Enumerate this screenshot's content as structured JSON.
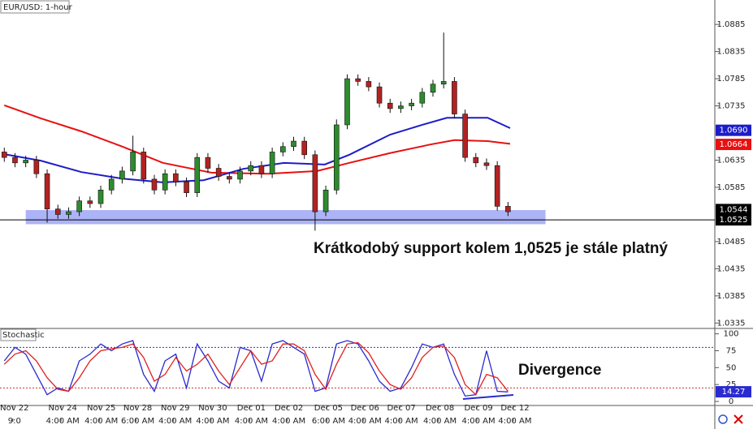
{
  "chart_data": [
    {
      "type": "candlestick",
      "title": "EUR/USD: 1-hour",
      "xlim": [
        -0.4,
        66.3
      ],
      "ylim": [
        1.0325,
        1.093
      ],
      "yticks": [
        1.0885,
        1.0835,
        1.0785,
        1.0735,
        1.0635,
        1.0585,
        1.0485,
        1.0435,
        1.0385,
        1.0335
      ],
      "up_color": "#2e8b2e",
      "down_color": "#b22222",
      "open": [
        1.065,
        1.064,
        1.063,
        1.0635,
        1.061,
        1.0545,
        1.0535,
        1.054,
        1.056,
        1.0555,
        1.058,
        1.06,
        1.0615,
        1.065,
        1.06,
        1.058,
        1.061,
        1.0595,
        1.0575,
        1.064,
        1.062,
        1.0605,
        1.06,
        1.0615,
        1.0625,
        1.061,
        1.065,
        1.066,
        1.067,
        1.0645,
        1.054,
        1.058,
        1.07,
        1.0785,
        1.078,
        1.077,
        1.074,
        1.073,
        1.0735,
        1.074,
        1.076,
        1.0775,
        1.078,
        1.072,
        1.064,
        1.063,
        1.0625,
        1.055
      ],
      "high": [
        1.0658,
        1.0648,
        1.0643,
        1.0643,
        1.0618,
        1.0553,
        1.0548,
        1.0568,
        1.0568,
        1.0588,
        1.0608,
        1.0623,
        1.068,
        1.0658,
        1.0608,
        1.0618,
        1.0618,
        1.0603,
        1.0648,
        1.0648,
        1.0628,
        1.0613,
        1.0623,
        1.0633,
        1.0633,
        1.0658,
        1.0668,
        1.0678,
        1.0678,
        1.0653,
        1.0588,
        1.071,
        1.0793,
        1.0793,
        1.0788,
        1.0778,
        1.0748,
        1.0743,
        1.0748,
        1.0768,
        1.0783,
        1.087,
        1.0788,
        1.0728,
        1.0648,
        1.0638,
        1.0633,
        1.0558
      ],
      "low": [
        1.0632,
        1.0622,
        1.0622,
        1.0602,
        1.052,
        1.0527,
        1.0527,
        1.0532,
        1.0547,
        1.0547,
        1.0572,
        1.0592,
        1.0607,
        1.0592,
        1.0572,
        1.0572,
        1.0587,
        1.0567,
        1.0567,
        1.0612,
        1.0597,
        1.0592,
        1.0592,
        1.0607,
        1.0602,
        1.0602,
        1.0642,
        1.0652,
        1.0637,
        1.0505,
        1.0532,
        1.0572,
        1.0692,
        1.0772,
        1.0762,
        1.0732,
        1.0722,
        1.0722,
        1.0727,
        1.0732,
        1.0752,
        1.0767,
        1.0712,
        1.0632,
        1.0622,
        1.0617,
        1.0542,
        1.0532
      ],
      "close": [
        1.064,
        1.063,
        1.0635,
        1.061,
        1.0545,
        1.0535,
        1.054,
        1.056,
        1.0555,
        1.058,
        1.06,
        1.0615,
        1.065,
        1.06,
        1.058,
        1.061,
        1.0595,
        1.0575,
        1.064,
        1.062,
        1.0605,
        1.06,
        1.0615,
        1.0625,
        1.061,
        1.065,
        1.066,
        1.067,
        1.0645,
        1.054,
        1.058,
        1.07,
        1.0785,
        1.078,
        1.077,
        1.074,
        1.073,
        1.0735,
        1.074,
        1.076,
        1.0775,
        1.078,
        1.072,
        1.064,
        1.063,
        1.0625,
        1.055,
        1.054
      ],
      "last_price": {
        "value": 1.0544,
        "label": "1.0544"
      },
      "series": [
        {
          "color": "#e81010",
          "x": [
            0,
            3.4,
            7.2,
            11,
            14.8,
            19.3,
            24.6,
            29.2,
            32.2,
            36,
            39.8,
            42,
            45.1,
            47.2
          ],
          "values": [
            1.0736,
            1.0712,
            1.0688,
            1.066,
            1.063,
            1.0612,
            1.061,
            1.0615,
            1.063,
            1.0648,
            1.0664,
            1.0672,
            1.067,
            1.0665
          ],
          "last": {
            "value": 1.0664,
            "label": "1.0664"
          }
        },
        {
          "color": "#1c1cc8",
          "x": [
            0,
            3.4,
            7.2,
            11,
            14.8,
            18.6,
            22.3,
            26.1,
            29.9,
            32.2,
            36,
            39,
            41.3,
            45.1,
            47.2
          ],
          "values": [
            1.0646,
            1.0634,
            1.0613,
            1.0601,
            1.0594,
            1.0598,
            1.0619,
            1.063,
            1.0627,
            1.0645,
            1.0682,
            1.07,
            1.0713,
            1.0713,
            1.0694
          ],
          "last": {
            "value": 1.069,
            "label": "1.0690"
          }
        }
      ],
      "support_zone": [
        1.0517,
        1.0543
      ],
      "support_level": {
        "value": 1.0525,
        "label": "1.0525"
      },
      "annotation": "Krátkodobý support kolem 1,0525 je stále platný"
    },
    {
      "type": "line",
      "title": "Stochastic",
      "xlim": [
        -0.4,
        66.3
      ],
      "ylim": [
        -6,
        108
      ],
      "yticks": [
        100,
        75,
        50,
        25,
        0
      ],
      "levels": [
        80,
        20
      ],
      "series": [
        {
          "color": "#2a2ad0",
          "values": [
            60,
            80,
            70,
            40,
            10,
            20,
            15,
            60,
            70,
            85,
            75,
            85,
            90,
            40,
            15,
            60,
            70,
            20,
            85,
            60,
            30,
            20,
            80,
            75,
            30,
            85,
            90,
            80,
            70,
            15,
            20,
            85,
            90,
            85,
            60,
            30,
            15,
            20,
            50,
            85,
            80,
            85,
            40,
            8,
            10,
            75,
            15,
            14
          ],
          "last": 14.27
        },
        {
          "color": "#e02020",
          "values": [
            55,
            70,
            75,
            60,
            35,
            18,
            15,
            35,
            60,
            75,
            78,
            80,
            85,
            65,
            30,
            40,
            65,
            45,
            55,
            70,
            45,
            25,
            50,
            75,
            55,
            60,
            85,
            85,
            75,
            40,
            18,
            55,
            85,
            87,
            72,
            45,
            25,
            18,
            35,
            65,
            80,
            82,
            65,
            25,
            10,
            40,
            35,
            15
          ]
        }
      ],
      "annotation": "Divergence",
      "xticks": [
        {
          "value": 0.8,
          "label": "Nov 22"
        },
        {
          "value": 5.3,
          "label": "Nov 24"
        },
        {
          "value": 8.9,
          "label": "Nov 25"
        },
        {
          "value": 12.3,
          "label": "Nov 28"
        },
        {
          "value": 15.8,
          "label": "Nov 29"
        },
        {
          "value": 19.3,
          "label": "Nov 30"
        },
        {
          "value": 22.9,
          "label": "Dec 01"
        },
        {
          "value": 26.4,
          "label": "Dec 02"
        },
        {
          "value": 30.1,
          "label": "Dec 05"
        },
        {
          "value": 33.5,
          "label": "Dec 06"
        },
        {
          "value": 36.9,
          "label": "Dec 07"
        },
        {
          "value": 40.5,
          "label": "Dec 08"
        },
        {
          "value": 44.1,
          "label": "Dec 09"
        },
        {
          "value": 47.5,
          "label": "Dec 12"
        }
      ],
      "xticks2": [
        {
          "value": 0.8,
          "label": "9:0"
        },
        {
          "value": 5.3,
          "label": "4:00 AM"
        },
        {
          "value": 8.9,
          "label": "4:00 AM"
        },
        {
          "value": 12.3,
          "label": "6:00 AM"
        },
        {
          "value": 15.8,
          "label": "4:00 AM"
        },
        {
          "value": 19.3,
          "label": "4:00 AM"
        },
        {
          "value": 22.9,
          "label": "4:00 AM"
        },
        {
          "value": 26.4,
          "label": "4:00 AM"
        },
        {
          "value": 30.1,
          "label": "6:00 AM"
        },
        {
          "value": 33.5,
          "label": "4:00 AM"
        },
        {
          "value": 36.9,
          "label": "4:00 AM"
        },
        {
          "value": 40.5,
          "label": "4:00 AM"
        },
        {
          "value": 44.1,
          "label": "4:00 AM"
        },
        {
          "value": 47.5,
          "label": "4:00 AM"
        }
      ]
    }
  ]
}
